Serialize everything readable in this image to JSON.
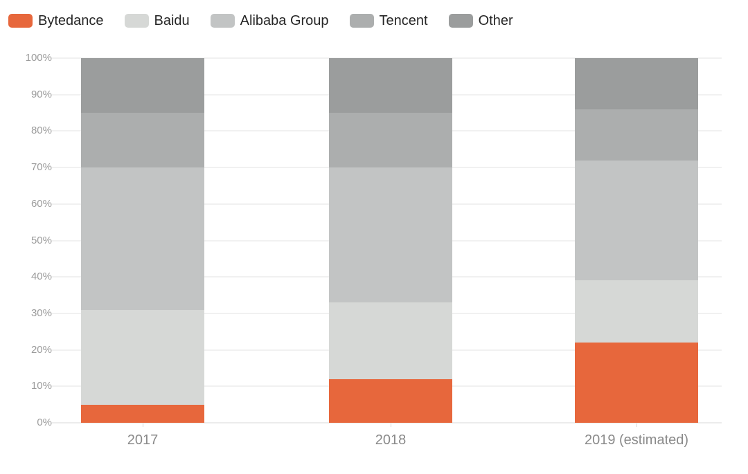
{
  "chart_data": {
    "type": "bar",
    "variant": "stacked-percent",
    "title": "",
    "xlabel": "",
    "ylabel": "",
    "categories": [
      "2017",
      "2018",
      "2019 (estimated)"
    ],
    "series": [
      {
        "name": "Bytedance",
        "color": "#e7673c",
        "values": [
          5,
          12,
          22
        ]
      },
      {
        "name": "Baidu",
        "color": "#d6d8d6",
        "values": [
          26,
          21,
          17
        ]
      },
      {
        "name": "Alibaba Group",
        "color": "#c2c4c4",
        "values": [
          39,
          37,
          33
        ]
      },
      {
        "name": "Tencent",
        "color": "#acaeae",
        "values": [
          15,
          15,
          14
        ]
      },
      {
        "name": "Other",
        "color": "#9b9d9d",
        "values": [
          15,
          15,
          14
        ]
      }
    ],
    "ylim": [
      0,
      100
    ],
    "y_tick_step": 10,
    "y_tick_suffix": "%",
    "grid": true,
    "legend_position": "top-left"
  },
  "style": {
    "grid_color": "#f1f1f1",
    "y_label_color": "#9b9b9b",
    "x_label_color": "#8a8a8a",
    "legend_text_color": "#262626",
    "background": "#ffffff"
  }
}
